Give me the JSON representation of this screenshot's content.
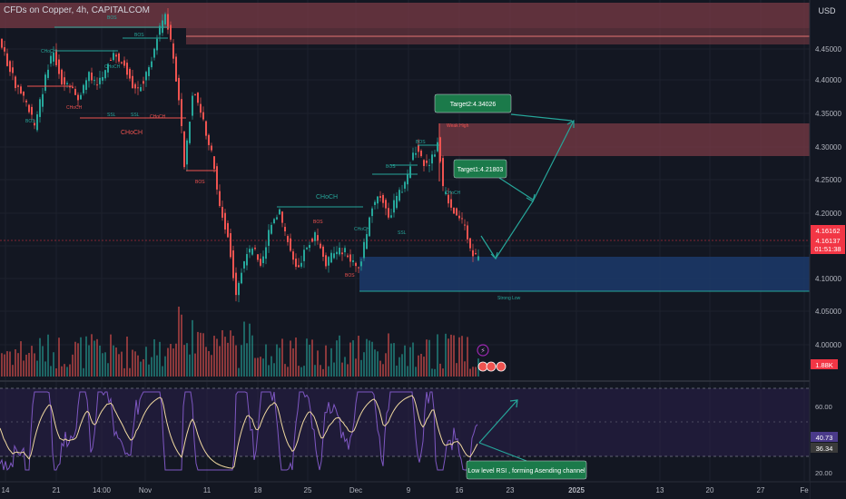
{
  "header": {
    "title": "CFDs on Copper, 4h, CAPITALCOM",
    "currency_button": "USD"
  },
  "colors": {
    "background": "#131722",
    "grid": "#1e222d",
    "up_candle": "#26a69a",
    "down_candle": "#ef5350",
    "supply_zone": "#7a3b45",
    "demand_zone": "#1c3a6b",
    "structure_line": "#26a69a",
    "annotation_box": "#1b7a4a",
    "price_label_bg": "#f23645",
    "rsi_line": "#7e57c2",
    "rsi_ma": "#f0d9a0"
  },
  "price_axis": {
    "ticks": [
      "4.45000",
      "4.40000",
      "4.35000",
      "4.30000",
      "4.25000",
      "4.20000",
      "4.15000",
      "4.10000",
      "4.05000",
      "4.00000"
    ],
    "last_price": "4.16162",
    "current_price": "4.16137",
    "countdown": "01:51:38",
    "volume_label": "1.88K"
  },
  "time_axis": {
    "ticks": [
      "14",
      "21",
      "14:00",
      "Nov",
      "11",
      "18",
      "25",
      "Dec",
      "9",
      "16",
      "23",
      "2025",
      "13",
      "20",
      "27",
      "Fe"
    ]
  },
  "rsi_axis": {
    "ticks": [
      "60.00",
      "20.00"
    ],
    "value_1": "40.73",
    "value_2": "36.34"
  },
  "structure_labels": {
    "bos": "BOS",
    "choch": "CHoCH",
    "ssl": "SSL",
    "big_choch": "CHoCH",
    "strong_low": "Strong Low",
    "weak_high": "Weak High"
  },
  "annotations": {
    "target2": "Target2:4.34026",
    "target1": "Target1:4.21803",
    "rsi_note": "Low level RSI , forming Asending channel"
  }
}
